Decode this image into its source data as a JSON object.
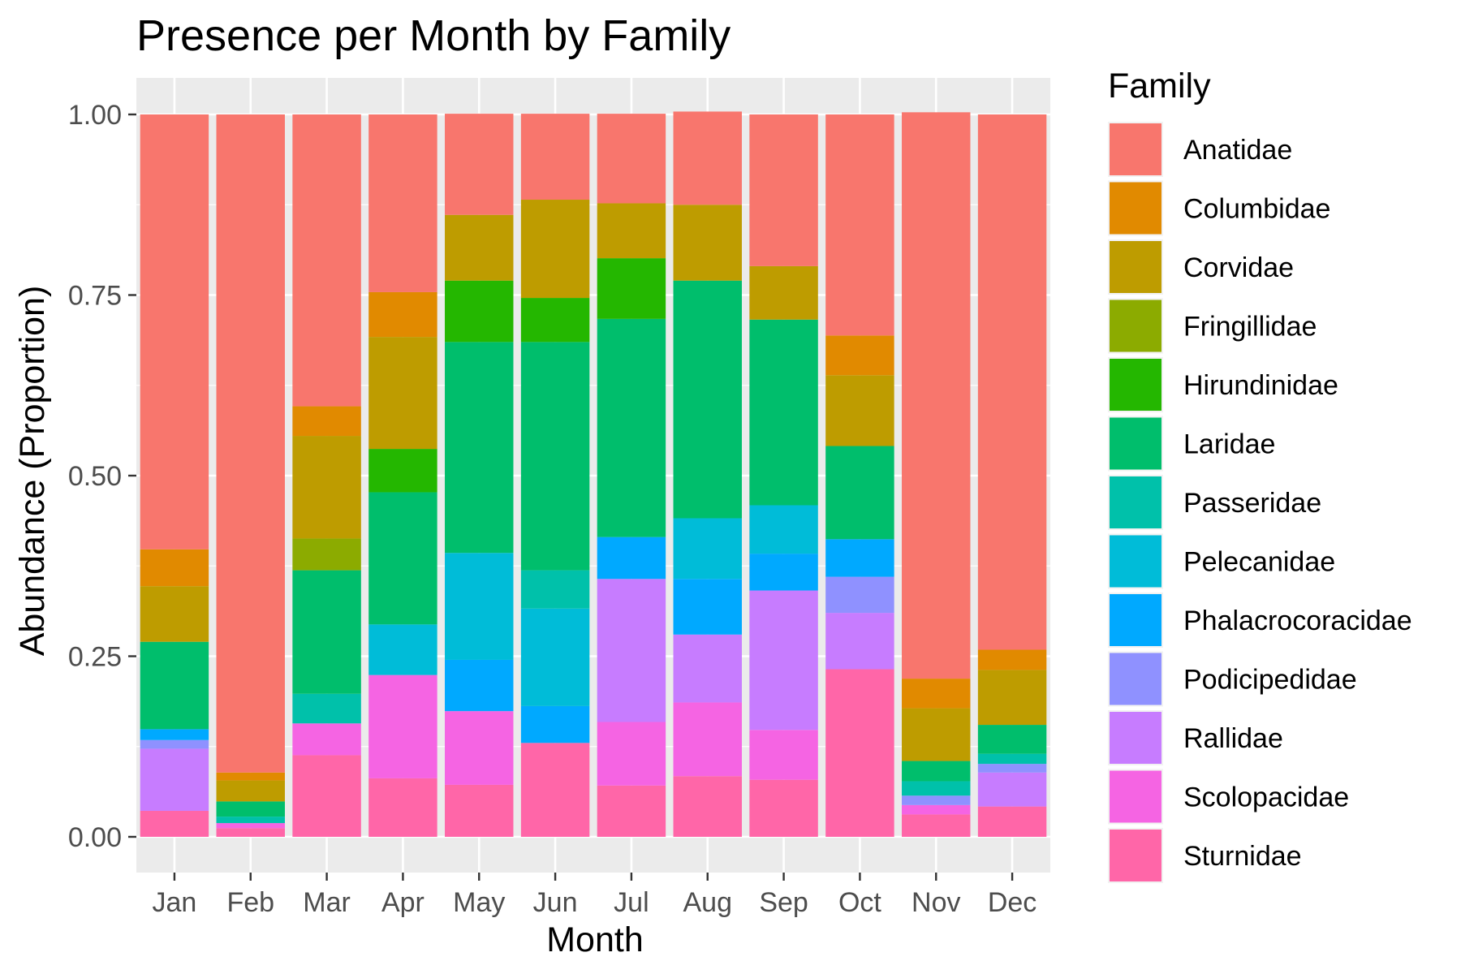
{
  "chart_data": {
    "type": "bar",
    "stacked": true,
    "title": "Presence per Month by Family",
    "xlabel": "Month",
    "ylabel": "Abundance (Proportion)",
    "ylim": [
      0,
      1
    ],
    "yticks": [
      "0.00",
      "0.25",
      "0.50",
      "0.75",
      "1.00"
    ],
    "ytick_values": [
      0,
      0.25,
      0.5,
      0.75,
      1
    ],
    "grid": true,
    "legend_title": "Family",
    "legend_position": "right",
    "categories": [
      "Jan",
      "Feb",
      "Mar",
      "Apr",
      "May",
      "Jun",
      "Jul",
      "Aug",
      "Sep",
      "Oct",
      "Nov",
      "Dec"
    ],
    "series": [
      {
        "name": "Sturnidae",
        "color": "#FF66A8",
        "values": [
          0.036,
          0.012,
          0.113,
          0.081,
          0.072,
          0.13,
          0.071,
          0.084,
          0.079,
          0.232,
          0.031,
          0.042
        ]
      },
      {
        "name": "Scolopacidae",
        "color": "#F564E3",
        "values": [
          0,
          0.007,
          0.044,
          0.143,
          0.102,
          0,
          0.088,
          0.102,
          0.069,
          0,
          0.013,
          0
        ]
      },
      {
        "name": "Rallidae",
        "color": "#C77CFF",
        "values": [
          0.086,
          0,
          0,
          0,
          0,
          0,
          0.198,
          0.094,
          0.193,
          0.078,
          0,
          0.047
        ]
      },
      {
        "name": "Podicipedidae",
        "color": "#8F91FF",
        "values": [
          0.012,
          0,
          0,
          0,
          0,
          0,
          0,
          0,
          0,
          0.05,
          0.013,
          0.012
        ]
      },
      {
        "name": "Phalacrocoracidae",
        "color": "#00A9FF",
        "values": [
          0.015,
          0,
          0,
          0,
          0.071,
          0.051,
          0.058,
          0.077,
          0.051,
          0.052,
          0,
          0
        ]
      },
      {
        "name": "Pelecanidae",
        "color": "#00BCD8",
        "values": [
          0,
          0,
          0,
          0.07,
          0.148,
          0.135,
          0,
          0.084,
          0.067,
          0,
          0,
          0
        ]
      },
      {
        "name": "Passeridae",
        "color": "#00C1AA",
        "values": [
          0,
          0.009,
          0.041,
          0,
          0,
          0.053,
          0,
          0,
          0,
          0,
          0.02,
          0.014
        ]
      },
      {
        "name": "Laridae",
        "color": "#00BE6C",
        "values": [
          0.121,
          0.021,
          0.171,
          0.183,
          0.292,
          0.316,
          0.302,
          0.329,
          0.257,
          0.129,
          0.028,
          0.04
        ]
      },
      {
        "name": "Hirundinidae",
        "color": "#24B700",
        "values": [
          0,
          0,
          0,
          0.06,
          0.085,
          0.061,
          0.084,
          0,
          0,
          0,
          0,
          0
        ]
      },
      {
        "name": "Fringillidae",
        "color": "#8CAB00",
        "values": [
          0,
          0,
          0.044,
          0,
          0,
          0,
          0,
          0,
          0,
          0,
          0,
          0
        ]
      },
      {
        "name": "Corvidae",
        "color": "#BE9C00",
        "values": [
          0.077,
          0.029,
          0.142,
          0.155,
          0.091,
          0.136,
          0.076,
          0.105,
          0.074,
          0.098,
          0.073,
          0.076
        ]
      },
      {
        "name": "Columbidae",
        "color": "#E18A00",
        "values": [
          0.051,
          0.011,
          0.041,
          0.062,
          0,
          0,
          0,
          0,
          0,
          0.055,
          0.041,
          0.028
        ]
      },
      {
        "name": "Anatidae",
        "color": "#F8766D",
        "values": [
          0.602,
          0.911,
          0.404,
          0.246,
          0.14,
          0.119,
          0.124,
          0.129,
          0.21,
          0.306,
          0.784,
          0.741
        ]
      }
    ],
    "legend_order": [
      "Anatidae",
      "Columbidae",
      "Corvidae",
      "Fringillidae",
      "Hirundinidae",
      "Laridae",
      "Passeridae",
      "Pelecanidae",
      "Phalacrocoracidae",
      "Podicipedidae",
      "Rallidae",
      "Scolopacidae",
      "Sturnidae"
    ],
    "panel_background": "#EBEBEB",
    "gridline_color": "#FFFFFF"
  }
}
